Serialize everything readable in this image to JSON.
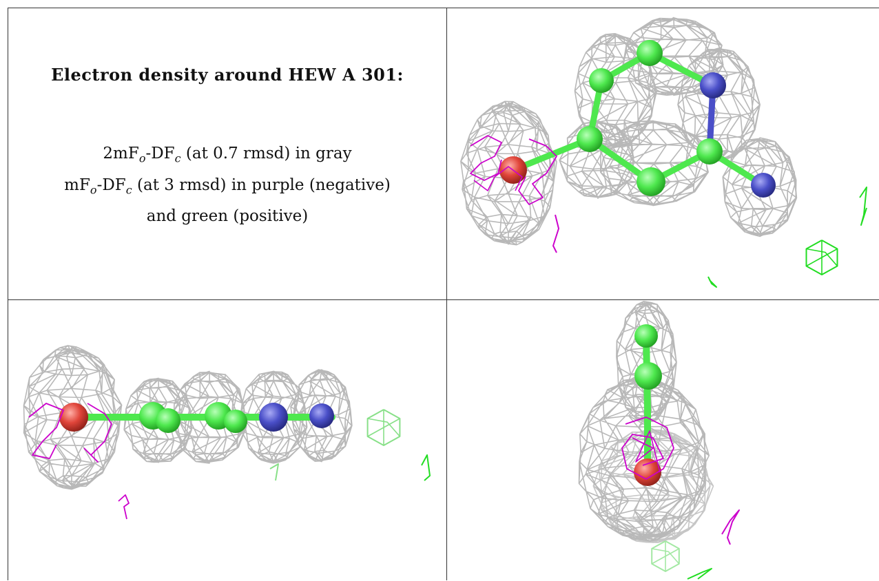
{
  "legend": {
    "title": "Electron density around HEW A 301:",
    "line1": {
      "prefix": "2mF",
      "sub1": "o",
      "mid": "-DF",
      "sub2": "c",
      "suffix": " (at 0.7 rmsd) in gray"
    },
    "line2": {
      "prefix": "mF",
      "sub1": "o",
      "mid": "-DF",
      "sub2": "c",
      "suffix": " (at 3 rmsd) in purple (negative)"
    },
    "line3": "and green (positive)"
  },
  "colors": {
    "mesh_2fofc": "#b8b8b8",
    "mesh_negative": "#cc00cc",
    "mesh_positive": "#22dd22",
    "carbon": "#4ee84e",
    "nitrogen": "#4a4fc8",
    "oxygen": "#e0453a",
    "border": "#333333"
  },
  "views": {
    "top_right": "top-view",
    "bottom_left": "side-view",
    "bottom_right": "end-view"
  }
}
